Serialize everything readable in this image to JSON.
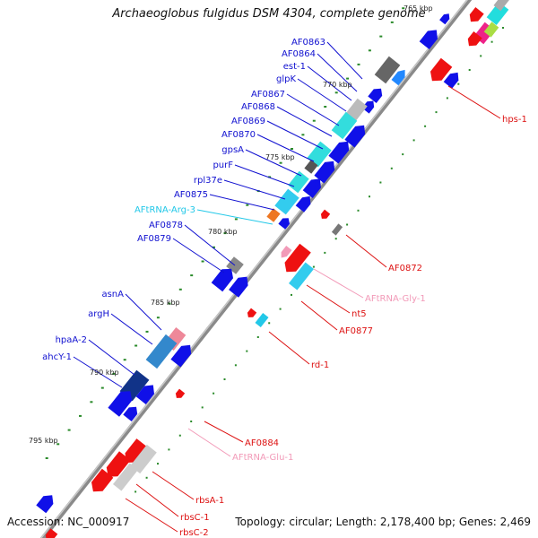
{
  "title": "Archaeoglobus fulgidus DSM 4304, complete genome",
  "footer": {
    "accession": "Accession: NC_000917",
    "summary": "Topology: circular; Length: 2,178,400 bp; Genes: 2,469"
  },
  "colors": {
    "forward_label": "#1010d0",
    "reverse_label": "#dd1111",
    "trna_forward_label": "#22c8e8",
    "trna_reverse_label": "#f29ab8",
    "cds_forward": "#1010e8",
    "cds_reverse": "#ee1111",
    "backbone": "#8a8a8a",
    "gc_ticks": "#2a8a2a"
  },
  "kbp_ticks": [
    "765 kbp",
    "770 kbp",
    "775 kbp",
    "780 kbp",
    "785 kbp",
    "790 kbp",
    "795 kbp"
  ],
  "forward_labels": [
    "AF0863",
    "AF0864",
    "est-1",
    "glpK",
    "AF0867",
    "AF0868",
    "AF0869",
    "AF0870",
    "gpsA",
    "purF",
    "rpl37e",
    "AF0875",
    "AFtRNA-Arg-3",
    "AF0878",
    "AF0879",
    "asnA",
    "argH",
    "hpaA-2",
    "ahcY-1"
  ],
  "reverse_labels": [
    "hps-1",
    "AF0872",
    "AFtRNA-Gly-1",
    "nt5",
    "AF0877",
    "rd-1",
    "AF0884",
    "AFtRNA-Glu-1",
    "rbsA-1",
    "rbsC-1",
    "rbsC-2"
  ]
}
